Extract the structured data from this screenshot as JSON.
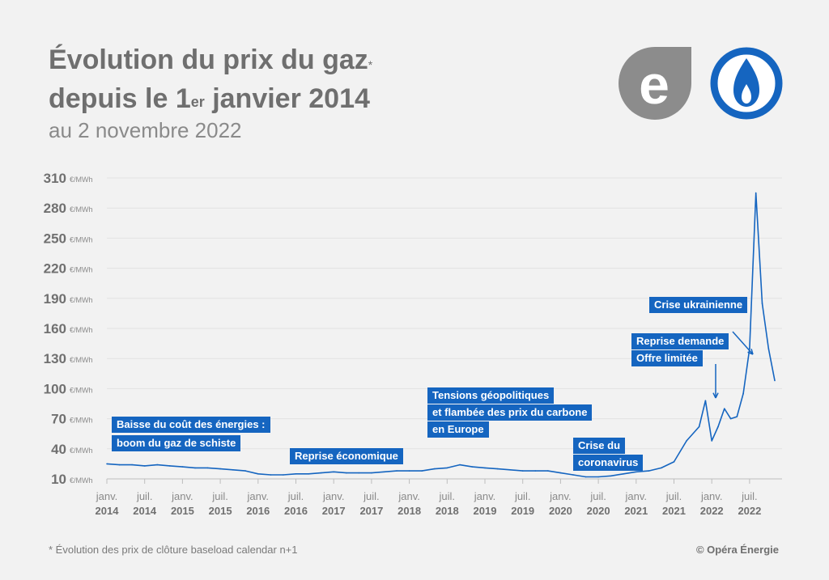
{
  "header": {
    "title_line1": "Évolution du prix du gaz",
    "title_line1_mark": "*",
    "title_line2_a": "depuis le 1",
    "title_line2_sup": "er",
    "title_line2_b": " janvier 2014",
    "subtitle": "au 2 novembre 2022"
  },
  "logos": [
    {
      "name": "opera-energie-logo",
      "letter": "e",
      "color": "#8c8c8c"
    },
    {
      "name": "gas-flame-logo",
      "color": "#1565c0"
    }
  ],
  "footer": {
    "footnote": "* Évolution des prix de clôture baseload calendar n+1",
    "copyright": "© Opéra Énergie"
  },
  "chart_data": {
    "type": "line",
    "y_unit": "€/MWh",
    "ylim": [
      10,
      310
    ],
    "yticks": [
      10,
      40,
      70,
      100,
      130,
      160,
      190,
      220,
      250,
      280,
      310
    ],
    "grid": true,
    "xlim": [
      "2014-01",
      "2022-11"
    ],
    "xticks": [
      {
        "month": "janv.",
        "year": "2014",
        "date": "2014-01"
      },
      {
        "month": "juil.",
        "year": "2014",
        "date": "2014-07"
      },
      {
        "month": "janv.",
        "year": "2015",
        "date": "2015-01"
      },
      {
        "month": "juil.",
        "year": "2015",
        "date": "2015-07"
      },
      {
        "month": "janv.",
        "year": "2016",
        "date": "2016-01"
      },
      {
        "month": "juil.",
        "year": "2016",
        "date": "2016-07"
      },
      {
        "month": "janv.",
        "year": "2017",
        "date": "2017-01"
      },
      {
        "month": "juil.",
        "year": "2017",
        "date": "2017-07"
      },
      {
        "month": "janv.",
        "year": "2018",
        "date": "2018-01"
      },
      {
        "month": "juil.",
        "year": "2018",
        "date": "2018-07"
      },
      {
        "month": "janv.",
        "year": "2019",
        "date": "2019-01"
      },
      {
        "month": "juil.",
        "year": "2019",
        "date": "2019-07"
      },
      {
        "month": "janv.",
        "year": "2020",
        "date": "2020-01"
      },
      {
        "month": "juil.",
        "year": "2020",
        "date": "2020-07"
      },
      {
        "month": "janv.",
        "year": "2021",
        "date": "2021-01"
      },
      {
        "month": "juil.",
        "year": "2021",
        "date": "2021-07"
      },
      {
        "month": "janv.",
        "year": "2022",
        "date": "2022-01"
      },
      {
        "month": "juil.",
        "year": "2022",
        "date": "2022-07"
      }
    ],
    "series": [
      {
        "color": "#1565c0",
        "points": [
          [
            "2014-01",
            25
          ],
          [
            "2014-03",
            24
          ],
          [
            "2014-05",
            24
          ],
          [
            "2014-07",
            23
          ],
          [
            "2014-09",
            24
          ],
          [
            "2014-11",
            23
          ],
          [
            "2015-01",
            22
          ],
          [
            "2015-03",
            21
          ],
          [
            "2015-05",
            21
          ],
          [
            "2015-07",
            20
          ],
          [
            "2015-09",
            19
          ],
          [
            "2015-11",
            18
          ],
          [
            "2016-01",
            15
          ],
          [
            "2016-03",
            14
          ],
          [
            "2016-05",
            14
          ],
          [
            "2016-07",
            15
          ],
          [
            "2016-09",
            15
          ],
          [
            "2016-11",
            16
          ],
          [
            "2017-01",
            17
          ],
          [
            "2017-03",
            16
          ],
          [
            "2017-05",
            16
          ],
          [
            "2017-07",
            16
          ],
          [
            "2017-09",
            17
          ],
          [
            "2017-11",
            18
          ],
          [
            "2018-01",
            18
          ],
          [
            "2018-03",
            18
          ],
          [
            "2018-05",
            20
          ],
          [
            "2018-07",
            21
          ],
          [
            "2018-09",
            24
          ],
          [
            "2018-11",
            22
          ],
          [
            "2019-01",
            21
          ],
          [
            "2019-03",
            20
          ],
          [
            "2019-05",
            19
          ],
          [
            "2019-07",
            18
          ],
          [
            "2019-09",
            18
          ],
          [
            "2019-11",
            18
          ],
          [
            "2020-01",
            16
          ],
          [
            "2020-03",
            14
          ],
          [
            "2020-05",
            12
          ],
          [
            "2020-07",
            12
          ],
          [
            "2020-09",
            13
          ],
          [
            "2020-11",
            15
          ],
          [
            "2021-01",
            17
          ],
          [
            "2021-03",
            18
          ],
          [
            "2021-05",
            21
          ],
          [
            "2021-07",
            27
          ],
          [
            "2021-09",
            48
          ],
          [
            "2021-11",
            62
          ],
          [
            "2021-12",
            88
          ],
          [
            "2022-01",
            48
          ],
          [
            "2022-02",
            62
          ],
          [
            "2022-03",
            80
          ],
          [
            "2022-04",
            70
          ],
          [
            "2022-05",
            72
          ],
          [
            "2022-06",
            95
          ],
          [
            "2022-07",
            140
          ],
          [
            "2022-08",
            295
          ],
          [
            "2022-09",
            185
          ],
          [
            "2022-10",
            140
          ],
          [
            "2022-11",
            108
          ]
        ]
      }
    ],
    "annotations": [
      {
        "lines": [
          "Baisse du coût des énergies :",
          "boom du gaz de schiste"
        ]
      },
      {
        "lines": [
          "Reprise économique"
        ]
      },
      {
        "lines": [
          "Tensions géopolitiques",
          "et flambée des prix du carbone",
          "en Europe"
        ]
      },
      {
        "lines": [
          "Crise du",
          "coronavirus"
        ]
      },
      {
        "lines": [
          "Reprise demande",
          "Offre limitée"
        ]
      },
      {
        "lines": [
          "Crise ukrainienne"
        ]
      }
    ]
  }
}
